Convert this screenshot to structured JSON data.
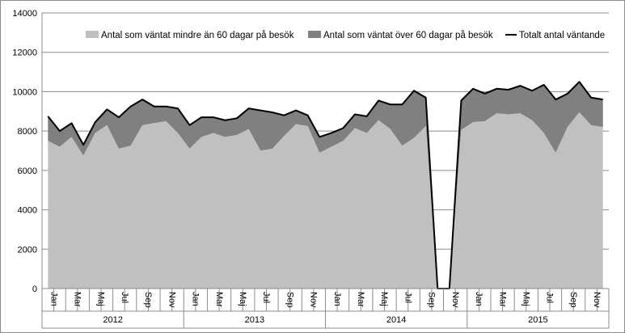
{
  "chart_data": {
    "type": "area",
    "title": "",
    "xlabel": "",
    "ylabel": "",
    "ylim": [
      0,
      14000
    ],
    "yticks": [
      0,
      2000,
      4000,
      6000,
      8000,
      10000,
      12000,
      14000
    ],
    "grid": true,
    "legend_position": "top",
    "years": [
      "2012",
      "2013",
      "2014",
      "2015"
    ],
    "month_tick_labels": [
      "Jan",
      "Mar",
      "Maj",
      "Jul",
      "Sep",
      "Nov"
    ],
    "month_tick_indices": [
      0,
      2,
      4,
      6,
      8,
      10
    ],
    "series": [
      {
        "name": "Antal som väntat mindre än 60 dagar på besök",
        "kind": "area",
        "color": "#c0c0c0",
        "values": [
          7500,
          7200,
          7700,
          6750,
          7900,
          8300,
          7100,
          7250,
          8300,
          8400,
          8500,
          7900,
          7100,
          7700,
          7900,
          7700,
          7800,
          8100,
          7000,
          7100,
          7750,
          8350,
          8250,
          6900,
          7200,
          7500,
          8150,
          7900,
          8550,
          8100,
          7250,
          7650,
          8250,
          0,
          0,
          8050,
          8450,
          8500,
          8900,
          8850,
          8900,
          8550,
          7900,
          6900,
          8200,
          8950,
          8300,
          8200
        ]
      },
      {
        "name": "Antal som väntat över 60 dagar på besök",
        "kind": "area",
        "color": "#808080",
        "values": [
          1250,
          800,
          700,
          550,
          550,
          800,
          1600,
          2000,
          1300,
          850,
          750,
          1250,
          1200,
          1000,
          800,
          850,
          850,
          1050,
          2050,
          1850,
          1050,
          700,
          550,
          800,
          700,
          650,
          700,
          850,
          1000,
          1250,
          2100,
          2400,
          1450,
          0,
          0,
          1500,
          1700,
          1400,
          1250,
          1250,
          1400,
          1500,
          2450,
          2700,
          1700,
          1550,
          1400,
          1400
        ]
      },
      {
        "name": "Totalt antal väntande",
        "kind": "line",
        "color": "#000000",
        "values": [
          8750,
          8000,
          8400,
          7300,
          8450,
          9100,
          8700,
          9250,
          9600,
          9250,
          9250,
          9150,
          8300,
          8700,
          8700,
          8550,
          8650,
          9150,
          9050,
          8950,
          8800,
          9050,
          8800,
          7700,
          7900,
          8150,
          8850,
          8750,
          9550,
          9350,
          9350,
          10050,
          9700,
          0,
          0,
          9550,
          10150,
          9900,
          10150,
          10100,
          10300,
          10050,
          10350,
          9600,
          9900,
          10500,
          9700,
          9600
        ]
      }
    ]
  }
}
